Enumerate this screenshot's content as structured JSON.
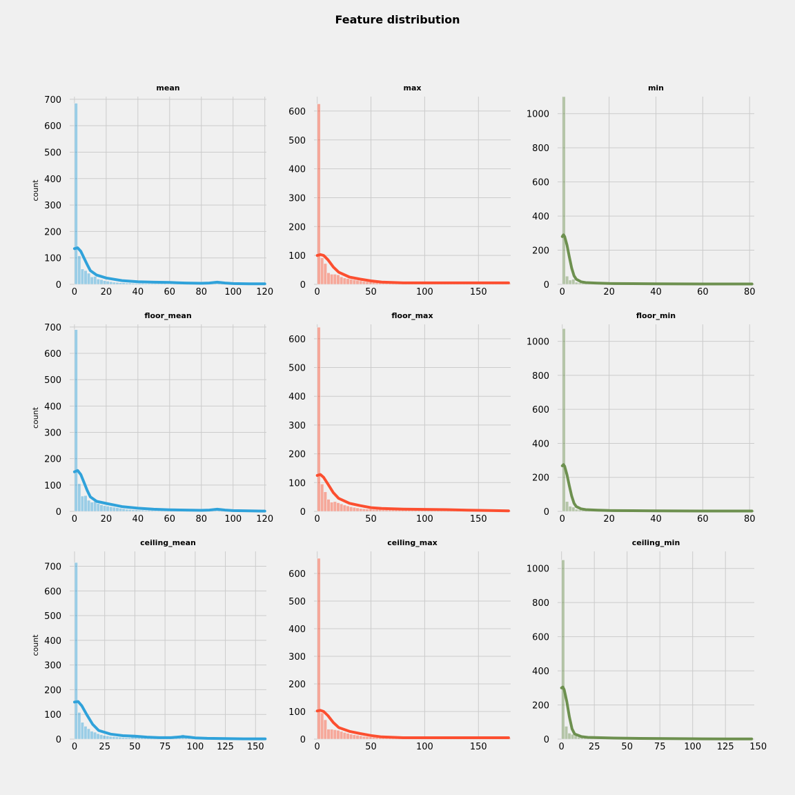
{
  "figure_title": "Feature distribution",
  "colors": {
    "background": "#f0f0f0",
    "grid": "#cbcbcb",
    "blue": "#30a2da",
    "red": "#fc4f30",
    "green": "#6d904f"
  },
  "chart_data": [
    {
      "type": "bar",
      "title": "mean",
      "ylabel": "count",
      "color": "blue",
      "xlim": [
        -3,
        121
      ],
      "ylim": [
        0,
        710
      ],
      "xticks": [
        0,
        20,
        40,
        60,
        80,
        100,
        120
      ],
      "yticks": [
        0,
        100,
        200,
        300,
        400,
        500,
        600,
        700
      ],
      "bin_width": 2.0,
      "counts": [
        685,
        108,
        58,
        52,
        42,
        28,
        30,
        20,
        18,
        14,
        12,
        10,
        8,
        7,
        6,
        6,
        5,
        5,
        4,
        4,
        4,
        4,
        3,
        3,
        3,
        3,
        3,
        3,
        3,
        2,
        2,
        2,
        2,
        2,
        2,
        2,
        2,
        2,
        2,
        2,
        2,
        2,
        2,
        2,
        3,
        8,
        3,
        2,
        2,
        2,
        2,
        2,
        2,
        1,
        1,
        1,
        1,
        1,
        1,
        1
      ],
      "kde_x": [
        0,
        2,
        4,
        6,
        8,
        10,
        14,
        20,
        30,
        40,
        50,
        60,
        70,
        80,
        85,
        90,
        95,
        100,
        110,
        120
      ],
      "kde_y": [
        135,
        138,
        125,
        100,
        75,
        52,
        35,
        24,
        14,
        10,
        8,
        7,
        5,
        4,
        5,
        8,
        5,
        3,
        2,
        2
      ]
    },
    {
      "type": "bar",
      "title": "max",
      "ylabel": "",
      "color": "red",
      "xlim": [
        -3,
        180
      ],
      "ylim": [
        0,
        650
      ],
      "xticks": [
        0,
        50,
        100,
        150
      ],
      "yticks": [
        0,
        100,
        200,
        300,
        400,
        500,
        600
      ],
      "bin_width": 3.0,
      "counts": [
        625,
        92,
        72,
        40,
        35,
        35,
        33,
        26,
        22,
        20,
        18,
        16,
        14,
        12,
        10,
        9,
        8,
        7,
        6,
        5,
        5,
        4,
        4,
        4,
        4,
        4,
        4,
        4,
        4,
        4,
        4,
        4,
        4,
        4,
        4,
        4,
        4,
        4,
        4,
        4,
        4,
        4,
        4,
        4,
        4,
        4,
        4,
        4,
        4,
        4,
        4,
        4,
        4,
        4,
        4,
        4,
        4,
        4,
        4,
        4
      ],
      "kde_x": [
        0,
        3,
        6,
        10,
        15,
        20,
        30,
        40,
        50,
        60,
        80,
        100,
        120,
        140,
        160,
        178
      ],
      "kde_y": [
        100,
        103,
        100,
        85,
        60,
        42,
        25,
        18,
        12,
        8,
        5,
        5,
        5,
        5,
        5,
        5
      ]
    },
    {
      "type": "bar",
      "title": "min",
      "ylabel": "",
      "color": "green",
      "xlim": [
        -2,
        82
      ],
      "ylim": [
        0,
        1100
      ],
      "xticks": [
        0,
        20,
        40,
        60,
        80
      ],
      "yticks": [
        0,
        200,
        400,
        600,
        800,
        1000
      ],
      "bin_width": 1.35,
      "counts": [
        1105,
        48,
        25,
        30,
        12,
        8,
        6,
        5,
        4,
        3,
        3,
        2,
        2,
        2,
        2,
        2,
        2,
        2,
        2,
        2,
        2,
        2,
        1,
        1,
        1,
        1,
        1,
        1,
        1,
        1,
        1,
        1,
        1,
        1,
        1,
        1,
        1,
        1,
        1,
        1,
        1,
        1,
        1,
        1,
        1,
        1,
        1,
        1,
        1,
        1,
        1,
        1,
        1,
        1,
        1,
        1,
        1,
        1,
        1,
        1
      ],
      "kde_x": [
        0,
        0.5,
        1,
        2,
        3,
        4,
        5,
        6,
        8,
        10,
        15,
        20,
        30,
        40,
        60,
        81
      ],
      "kde_y": [
        280,
        290,
        280,
        230,
        160,
        95,
        50,
        30,
        15,
        10,
        7,
        5,
        4,
        3,
        2,
        2
      ]
    },
    {
      "type": "bar",
      "title": "floor_mean",
      "ylabel": "count",
      "color": "blue",
      "xlim": [
        -3,
        121
      ],
      "ylim": [
        0,
        710
      ],
      "xticks": [
        0,
        20,
        40,
        60,
        80,
        100,
        120
      ],
      "yticks": [
        0,
        100,
        200,
        300,
        400,
        500,
        600,
        700
      ],
      "bin_width": 2.0,
      "counts": [
        690,
        105,
        58,
        60,
        42,
        35,
        38,
        30,
        25,
        22,
        20,
        18,
        16,
        14,
        12,
        10,
        8,
        7,
        6,
        6,
        5,
        5,
        4,
        4,
        4,
        3,
        3,
        3,
        3,
        3,
        3,
        3,
        2,
        2,
        2,
        2,
        2,
        2,
        2,
        2,
        2,
        2,
        2,
        2,
        3,
        10,
        3,
        2,
        2,
        2,
        2,
        2,
        2,
        1,
        1,
        1,
        1,
        1,
        1,
        1
      ],
      "kde_x": [
        0,
        2,
        4,
        6,
        8,
        10,
        14,
        20,
        30,
        40,
        50,
        60,
        70,
        80,
        85,
        90,
        95,
        100,
        110,
        120
      ],
      "kde_y": [
        150,
        155,
        140,
        110,
        80,
        55,
        38,
        30,
        18,
        12,
        8,
        6,
        5,
        4,
        5,
        8,
        5,
        3,
        2,
        1
      ]
    },
    {
      "type": "bar",
      "title": "floor_max",
      "ylabel": "",
      "color": "red",
      "xlim": [
        -3,
        180
      ],
      "ylim": [
        0,
        650
      ],
      "xticks": [
        0,
        50,
        100,
        150
      ],
      "yticks": [
        0,
        100,
        200,
        300,
        400,
        500,
        600
      ],
      "bin_width": 3.0,
      "counts": [
        640,
        95,
        68,
        42,
        32,
        34,
        30,
        26,
        22,
        19,
        16,
        14,
        12,
        10,
        9,
        8,
        8,
        7,
        7,
        7,
        6,
        6,
        6,
        6,
        5,
        5,
        5,
        5,
        5,
        4,
        4,
        4,
        4,
        4,
        4,
        4,
        3,
        3,
        3,
        3,
        3,
        3,
        3,
        3,
        3,
        3,
        3,
        3,
        3,
        3,
        3,
        3,
        3,
        3,
        3,
        3,
        3,
        3,
        3,
        3
      ],
      "kde_x": [
        0,
        3,
        6,
        10,
        15,
        20,
        30,
        40,
        50,
        60,
        80,
        100,
        120,
        140,
        160,
        178
      ],
      "kde_y": [
        125,
        128,
        118,
        95,
        65,
        45,
        28,
        20,
        13,
        10,
        8,
        7,
        6,
        4,
        3,
        2
      ]
    },
    {
      "type": "bar",
      "title": "floor_min",
      "ylabel": "",
      "color": "green",
      "xlim": [
        -2,
        82
      ],
      "ylim": [
        0,
        1100
      ],
      "xticks": [
        0,
        20,
        40,
        60,
        80
      ],
      "yticks": [
        0,
        200,
        400,
        600,
        800,
        1000
      ],
      "bin_width": 1.35,
      "counts": [
        1075,
        58,
        30,
        25,
        12,
        8,
        6,
        5,
        4,
        3,
        3,
        2,
        2,
        2,
        2,
        2,
        2,
        2,
        2,
        2,
        2,
        2,
        1,
        1,
        1,
        1,
        1,
        1,
        1,
        1,
        1,
        1,
        1,
        1,
        1,
        1,
        1,
        1,
        1,
        1,
        1,
        1,
        1,
        1,
        1,
        1,
        1,
        1,
        1,
        1,
        1,
        1,
        1,
        1,
        1,
        1,
        1,
        1,
        1,
        1
      ],
      "kde_x": [
        0,
        0.5,
        1,
        2,
        3,
        4,
        5,
        6,
        8,
        10,
        15,
        20,
        30,
        40,
        60,
        81
      ],
      "kde_y": [
        268,
        275,
        265,
        215,
        150,
        90,
        48,
        28,
        15,
        10,
        7,
        5,
        4,
        3,
        2,
        2
      ]
    },
    {
      "type": "bar",
      "title": "ceiling_mean",
      "ylabel": "count",
      "color": "blue",
      "xlim": [
        -4,
        159
      ],
      "ylim": [
        0,
        760
      ],
      "xticks": [
        0,
        25,
        50,
        75,
        100,
        125,
        150
      ],
      "yticks": [
        0,
        100,
        200,
        300,
        400,
        500,
        600,
        700
      ],
      "bin_width": 2.6,
      "counts": [
        715,
        108,
        68,
        52,
        42,
        32,
        28,
        22,
        18,
        15,
        13,
        11,
        10,
        9,
        8,
        7,
        6,
        6,
        8,
        12,
        6,
        5,
        5,
        4,
        4,
        4,
        4,
        4,
        4,
        4,
        4,
        4,
        5,
        6,
        18,
        8,
        4,
        3,
        3,
        3,
        3,
        2,
        2,
        2,
        2,
        2,
        2,
        2,
        2,
        2,
        2,
        2,
        1,
        1,
        1,
        1,
        1,
        1,
        1,
        1
      ],
      "kde_x": [
        0,
        3,
        6,
        10,
        15,
        20,
        30,
        40,
        50,
        60,
        70,
        80,
        90,
        95,
        100,
        110,
        125,
        140,
        158
      ],
      "kde_y": [
        150,
        152,
        135,
        100,
        60,
        35,
        20,
        14,
        12,
        8,
        6,
        6,
        10,
        8,
        5,
        3,
        2,
        1,
        1
      ]
    },
    {
      "type": "bar",
      "title": "ceiling_max",
      "ylabel": "",
      "color": "red",
      "xlim": [
        -3,
        180
      ],
      "ylim": [
        0,
        680
      ],
      "xticks": [
        0,
        50,
        100,
        150
      ],
      "yticks": [
        0,
        100,
        200,
        300,
        400,
        500,
        600
      ],
      "bin_width": 3.0,
      "counts": [
        655,
        95,
        70,
        36,
        36,
        34,
        32,
        28,
        24,
        21,
        18,
        16,
        14,
        12,
        10,
        9,
        8,
        7,
        6,
        5,
        5,
        4,
        4,
        4,
        4,
        4,
        4,
        4,
        4,
        4,
        4,
        4,
        4,
        4,
        4,
        4,
        4,
        4,
        4,
        4,
        4,
        4,
        4,
        4,
        4,
        4,
        4,
        4,
        4,
        4,
        4,
        4,
        4,
        4,
        4,
        4,
        4,
        4,
        4,
        4
      ],
      "kde_x": [
        0,
        3,
        6,
        10,
        15,
        20,
        30,
        40,
        50,
        60,
        80,
        100,
        120,
        140,
        160,
        178
      ],
      "kde_y": [
        102,
        104,
        100,
        85,
        60,
        42,
        28,
        20,
        13,
        8,
        5,
        5,
        5,
        5,
        5,
        5
      ]
    },
    {
      "type": "bar",
      "title": "ceiling_min",
      "ylabel": "",
      "color": "green",
      "xlim": [
        -3,
        147
      ],
      "ylim": [
        0,
        1100
      ],
      "xticks": [
        0,
        25,
        50,
        75,
        100,
        125,
        150
      ],
      "yticks": [
        0,
        200,
        400,
        600,
        800,
        1000
      ],
      "bin_width": 2.4,
      "counts": [
        1050,
        75,
        35,
        28,
        20,
        12,
        10,
        8,
        6,
        5,
        5,
        4,
        4,
        4,
        4,
        3,
        3,
        3,
        3,
        3,
        3,
        3,
        2,
        2,
        2,
        2,
        2,
        2,
        2,
        2,
        2,
        2,
        2,
        2,
        2,
        2,
        2,
        2,
        2,
        2,
        2,
        2,
        2,
        2,
        2,
        2,
        2,
        2,
        2,
        2,
        2,
        2,
        2,
        2,
        2,
        2,
        2,
        2,
        2,
        2
      ],
      "kde_x": [
        0,
        1,
        2,
        4,
        6,
        8,
        10,
        15,
        20,
        30,
        40,
        50,
        60,
        80,
        100,
        125,
        145
      ],
      "kde_y": [
        300,
        305,
        290,
        220,
        130,
        60,
        30,
        15,
        10,
        8,
        6,
        5,
        4,
        3,
        2,
        1,
        1
      ]
    }
  ]
}
